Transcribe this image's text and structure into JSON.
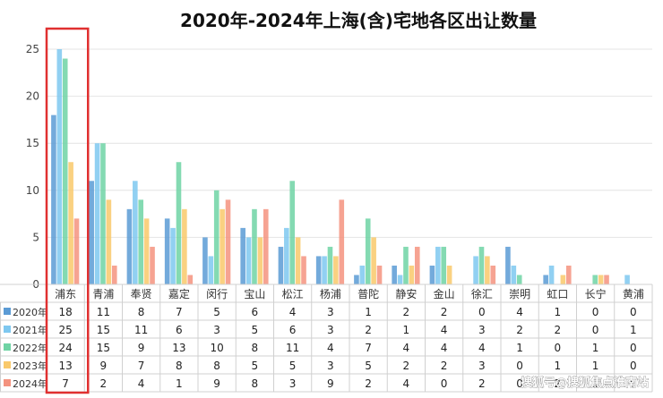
{
  "chart_data": {
    "type": "bar",
    "title": "2020年-2024年上海(含)宅地各区出让数量",
    "categories": [
      "浦东",
      "青浦",
      "奉贤",
      "嘉定",
      "闵行",
      "宝山",
      "松江",
      "杨浦",
      "普陀",
      "静安",
      "金山",
      "徐汇",
      "崇明",
      "虹口",
      "长宁",
      "黄浦"
    ],
    "series": [
      {
        "name": "2020年",
        "color": "#5b9bd5",
        "values": [
          18,
          11,
          8,
          7,
          5,
          6,
          4,
          3,
          1,
          2,
          2,
          0,
          4,
          1,
          0,
          0
        ]
      },
      {
        "name": "2021年",
        "color": "#7ec8f0",
        "values": [
          25,
          15,
          11,
          6,
          3,
          5,
          6,
          3,
          2,
          1,
          4,
          3,
          2,
          2,
          0,
          1
        ]
      },
      {
        "name": "2022年",
        "color": "#6fd3a4",
        "values": [
          24,
          15,
          9,
          13,
          10,
          8,
          11,
          4,
          7,
          4,
          4,
          4,
          1,
          0,
          1,
          0
        ]
      },
      {
        "name": "2023年",
        "color": "#f9c96b",
        "values": [
          13,
          9,
          7,
          8,
          8,
          5,
          5,
          3,
          5,
          2,
          2,
          3,
          0,
          1,
          1,
          0
        ]
      },
      {
        "name": "2024年",
        "color": "#f4937f",
        "values": [
          7,
          2,
          4,
          1,
          9,
          8,
          3,
          9,
          2,
          4,
          0,
          2,
          0,
          2,
          1,
          0
        ]
      }
    ],
    "ylim": [
      0,
      25
    ],
    "yticks": [
      0,
      5,
      10,
      15,
      20,
      25
    ],
    "grid": true,
    "legend": "table-below",
    "highlight_category": "浦东",
    "highlight_color": "#e03030"
  },
  "watermark": "搜狐号@搜狐焦点淮南站"
}
